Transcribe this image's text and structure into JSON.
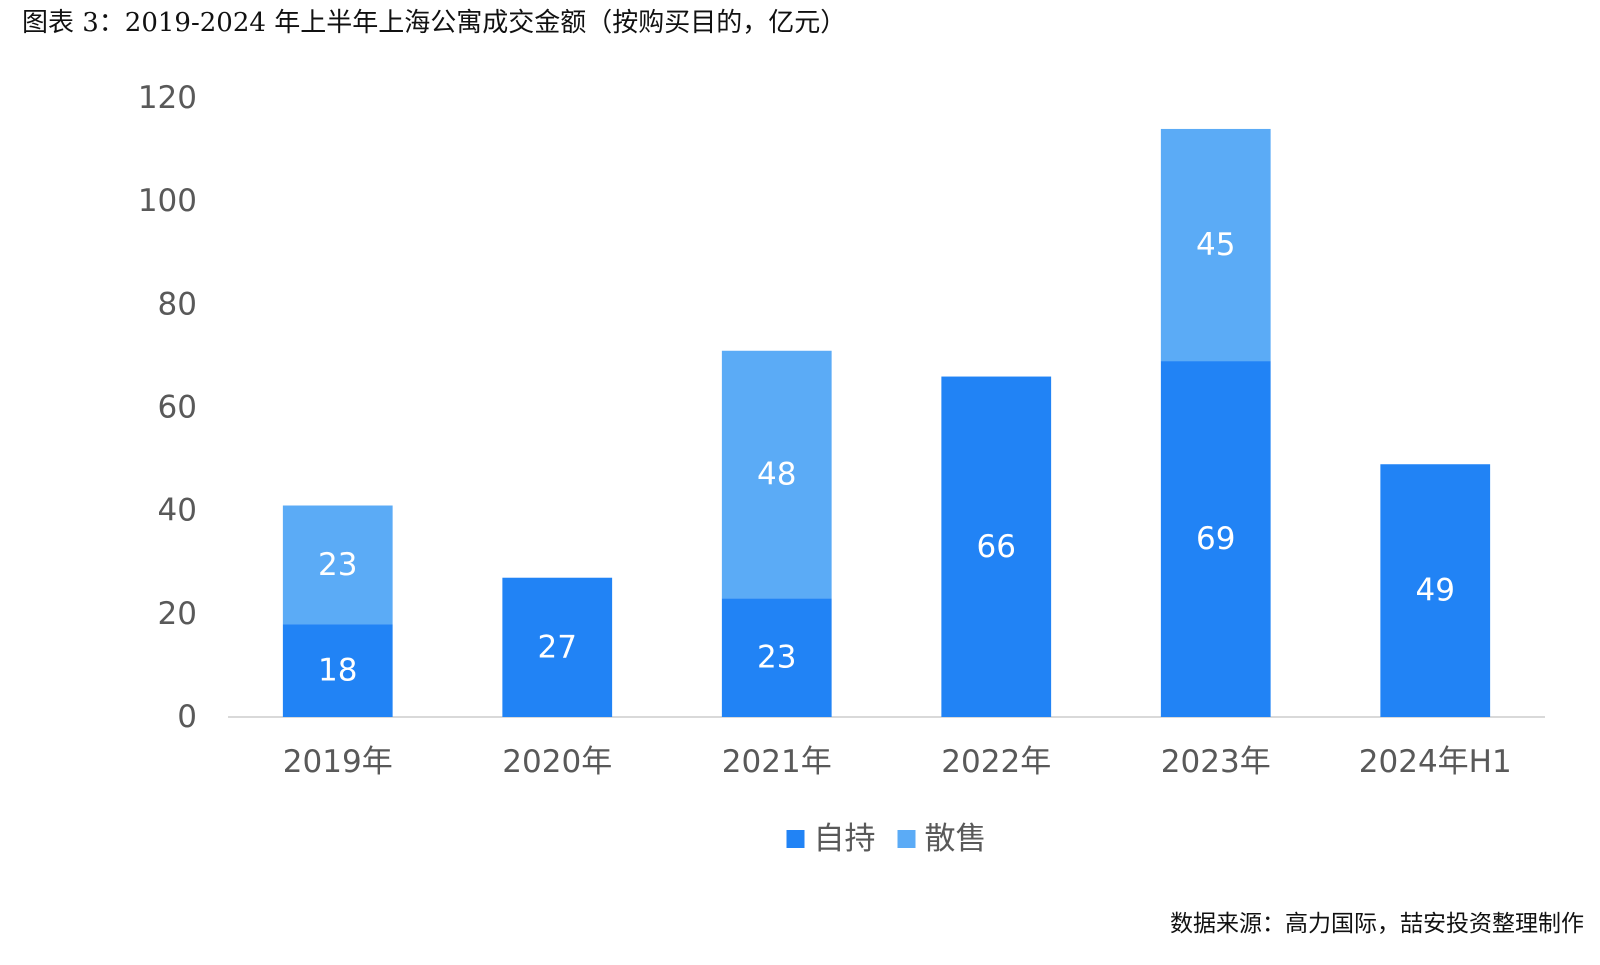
{
  "chart_data": {
    "type": "bar",
    "stacked": true,
    "title": "图表 3：2019-2024 年上半年上海公寓成交金额（按购买目的，亿元）",
    "categories": [
      "2019年",
      "2020年",
      "2021年",
      "2022年",
      "2023年",
      "2024年H1"
    ],
    "series": [
      {
        "name": "自持",
        "color": "#2183F5",
        "values": [
          18,
          27,
          23,
          66,
          69,
          49
        ]
      },
      {
        "name": "散售",
        "color": "#5BABF6",
        "values": [
          23,
          null,
          48,
          null,
          45,
          null
        ]
      }
    ],
    "y_ticks": [
      "0",
      "20",
      "40",
      "60",
      "80",
      "100",
      "120"
    ],
    "ylim": [
      0,
      120
    ],
    "grid": false,
    "legend_position": "bottom-center",
    "data_label_color": "#ffffff"
  },
  "source_note": "数据来源：高力国际，喆安投资整理制作"
}
